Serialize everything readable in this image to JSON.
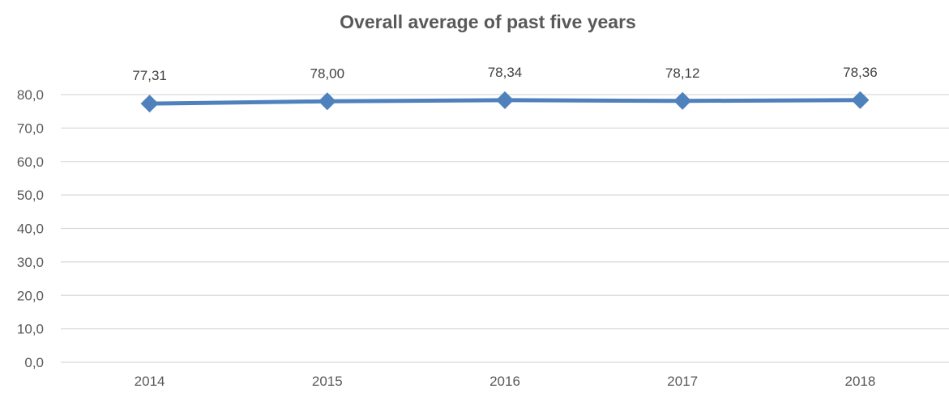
{
  "chart_data": {
    "type": "line",
    "title": "Overall average of past five years",
    "xlabel": "",
    "ylabel": "",
    "categories": [
      "2014",
      "2015",
      "2016",
      "2017",
      "2018"
    ],
    "series": [
      {
        "values": [
          77.31,
          78.0,
          78.34,
          78.12,
          78.36
        ],
        "data_labels": [
          "77,31",
          "78,00",
          "78,34",
          "78,12",
          "78,36"
        ],
        "color": "#4f81bd",
        "marker": "diamond"
      }
    ],
    "ylim": [
      0,
      80
    ],
    "y_ticks": [
      0,
      10,
      20,
      30,
      40,
      50,
      60,
      70,
      80
    ],
    "y_tick_labels": [
      "0,0",
      "10,0",
      "20,0",
      "30,0",
      "40,0",
      "50,0",
      "60,0",
      "70,0",
      "80,0"
    ],
    "grid": "horizontal",
    "gridline_color": "#d9d9d9",
    "legend": "none"
  }
}
